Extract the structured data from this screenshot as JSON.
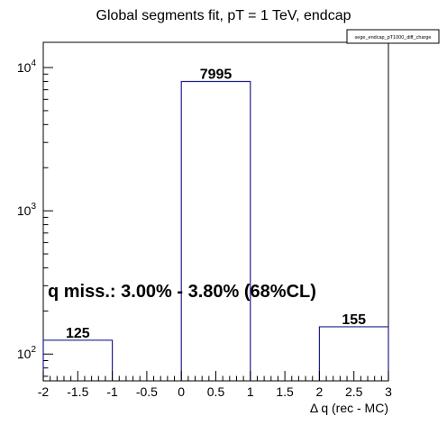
{
  "chart_data": {
    "type": "bar",
    "title": "Global segments fit, pT = 1 TeV, endcap",
    "xlabel": "Δ q (rec - MC)",
    "ylabel": "",
    "legend_label": "sege_endcap_pT1000_diff_charge",
    "legend_position": "top-right",
    "annotation": "q miss.: 3.00% - 3.80% (68%CL)",
    "y_scale": "log",
    "xlim": [
      -2,
      3
    ],
    "ylim": [
      65,
      15000
    ],
    "grid": false,
    "bins": [
      {
        "x0": -2,
        "x1": -1,
        "value": 125,
        "label": "125"
      },
      {
        "x0": -1,
        "x1": 0,
        "value": 0,
        "label": ""
      },
      {
        "x0": 0,
        "x1": 1,
        "value": 7995,
        "label": "7995"
      },
      {
        "x0": 1,
        "x1": 2,
        "value": 0,
        "label": ""
      },
      {
        "x0": 2,
        "x1": 3,
        "value": 155,
        "label": "155"
      }
    ],
    "x_ticks": [
      "-2",
      "-1.5",
      "-1",
      "-0.5",
      "0",
      "0.5",
      "1",
      "1.5",
      "2",
      "2.5",
      "3"
    ],
    "y_ticks": [
      {
        "value": 100,
        "exp": "2"
      },
      {
        "value": 1000,
        "exp": "3"
      },
      {
        "value": 10000,
        "exp": "4"
      }
    ],
    "y_tick_base": "10",
    "colors": {
      "histogram": "#1f1f8f",
      "frame": "#000000"
    }
  }
}
